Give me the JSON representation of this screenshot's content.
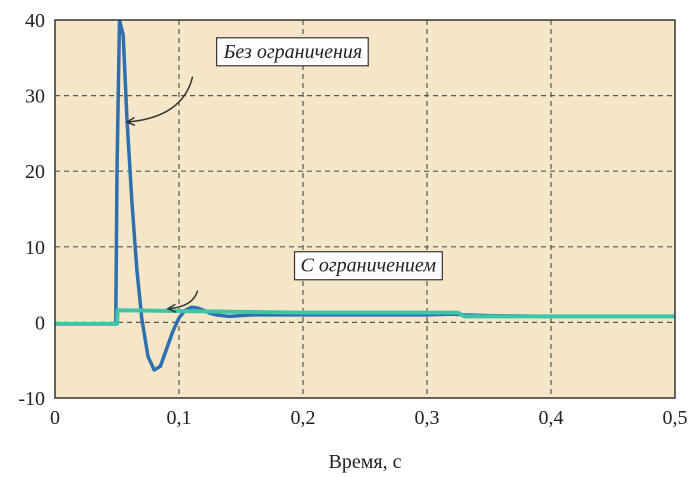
{
  "chart_data": {
    "type": "line",
    "title": "",
    "xlabel": "Время, с",
    "ylabel": "",
    "xlim": [
      0,
      0.5
    ],
    "ylim": [
      -10,
      40
    ],
    "x_ticks": [
      0,
      0.1,
      0.2,
      0.3,
      0.4,
      0.5
    ],
    "x_tick_labels": [
      "0",
      "0,1",
      "0,2",
      "0,3",
      "0,4",
      "0,5"
    ],
    "y_ticks": [
      -10,
      0,
      10,
      20,
      30,
      40
    ],
    "y_tick_labels": [
      "-10",
      "0",
      "10",
      "20",
      "30",
      "40"
    ],
    "grid": true,
    "legend": "none",
    "colors": {
      "plot_background": "#f5e6c8",
      "grid": "#555555",
      "frame": "#333333",
      "series_unlimited": "#2e6fb0",
      "series_limited": "#3ec4a8",
      "annotation_box": "#ffffff",
      "annotation_arrow": "#333333"
    },
    "series": [
      {
        "x": [
          0,
          0.049,
          0.05,
          0.052,
          0.055,
          0.058,
          0.062,
          0.066,
          0.07,
          0.075,
          0.08,
          0.085,
          0.09,
          0.095,
          0.1,
          0.105,
          0.11,
          0.115,
          0.12,
          0.125,
          0.13,
          0.14,
          0.15,
          0.16,
          0.18,
          0.2,
          0.25,
          0.3,
          0.32,
          0.33,
          0.35,
          0.4,
          0.45,
          0.5
        ],
        "values": [
          -0.2,
          -0.2,
          20,
          40,
          38,
          27,
          16,
          7,
          0.5,
          -4.5,
          -6.3,
          -5.8,
          -3.5,
          -1.2,
          0.6,
          1.6,
          2.0,
          1.9,
          1.6,
          1.2,
          1.0,
          0.8,
          0.9,
          1.0,
          1.0,
          1.0,
          1.0,
          1.0,
          1.1,
          1.0,
          0.9,
          0.8,
          0.8,
          0.8
        ]
      },
      {
        "x": [
          0,
          0.05,
          0.0505,
          0.1,
          0.15,
          0.2,
          0.25,
          0.3,
          0.325,
          0.33,
          0.35,
          0.4,
          0.45,
          0.5
        ],
        "values": [
          -0.2,
          -0.2,
          1.6,
          1.5,
          1.4,
          1.3,
          1.3,
          1.3,
          1.3,
          0.8,
          0.8,
          0.8,
          0.8,
          0.8
        ]
      }
    ],
    "annotations": [
      {
        "id": "unlimited",
        "text": "Без ограничения",
        "text_x": 0.136,
        "text_y": 35.0,
        "arrow_from": [
          0.111,
          32.5
        ],
        "arrow_to": [
          0.058,
          26.5
        ]
      },
      {
        "id": "limited",
        "text": "С ограничением",
        "text_x": 0.198,
        "text_y": 6.7,
        "arrow_from": [
          0.115,
          4.2
        ],
        "arrow_to": [
          0.091,
          1.8
        ]
      }
    ]
  }
}
